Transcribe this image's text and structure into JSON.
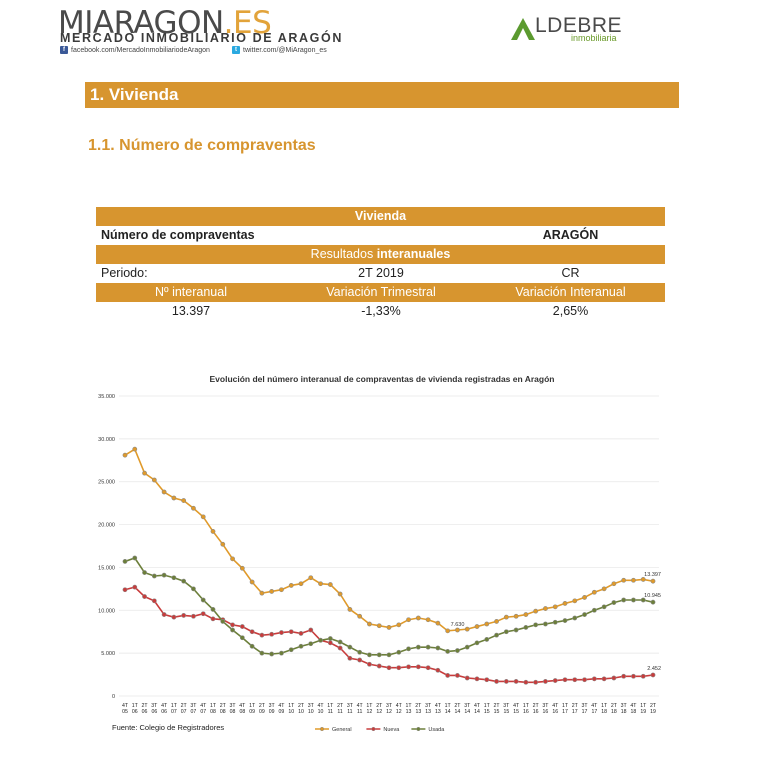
{
  "header": {
    "logo_main": "MIARAGON",
    "logo_tld": ".ES",
    "logo_subtitle": "MERCADO INMOBILIARIO DE ARAGÓN",
    "facebook": "facebook.com/MercadoInmobiliariodeAragon",
    "twitter": "twitter.com/@MiAragon_es",
    "partner_name": "LDEBRE",
    "partner_sub": "inmobiliaria"
  },
  "section_title": "1. Vivienda",
  "subsection_title": "1.1. Número de compraventas",
  "table": {
    "title": "Vivienda",
    "row2_left": "Número de compraventas",
    "row2_right": "ARAGÓN",
    "results_prefix": "Resultados ",
    "results_bold": "interanuales",
    "period_label": "Periodo:",
    "period_value": "2T 2019",
    "period_code": "CR",
    "headers": [
      "Nº interanual",
      "Variación Trimestral",
      "Variación Interanual"
    ],
    "values": [
      "13.397",
      "-1,33%",
      "2,65%"
    ]
  },
  "chart_data": {
    "type": "line",
    "title": "Evolución del número interanual de compraventas de vivienda registradas en Aragón",
    "ylim": [
      0,
      35000
    ],
    "yticks": [
      "0",
      "5.000",
      "10.000",
      "15.000",
      "20.000",
      "25.000",
      "30.000",
      "35.000"
    ],
    "categories": [
      "4T 05",
      "1T 06",
      "2T 06",
      "3T 06",
      "4T 06",
      "1T 07",
      "2T 07",
      "3T 07",
      "4T 07",
      "1T 08",
      "2T 08",
      "3T 08",
      "4T 08",
      "1T 09",
      "2T 09",
      "3T 09",
      "4T 09",
      "1T 10",
      "2T 10",
      "3T 10",
      "4T 10",
      "1T 11",
      "2T 11",
      "3T 11",
      "4T 11",
      "1T 12",
      "2T 12",
      "3T 12",
      "4T 12",
      "1T 13",
      "2T 13",
      "3T 13",
      "4T 13",
      "1T 14",
      "2T 14",
      "3T 14",
      "4T 14",
      "1T 15",
      "2T 15",
      "3T 15",
      "4T 15",
      "1T 16",
      "2T 16",
      "3T 16",
      "4T 16",
      "1T 17",
      "2T 17",
      "3T 17",
      "4T 17",
      "1T 18",
      "2T 18",
      "3T 18",
      "4T 18",
      "1T 19",
      "2T 19"
    ],
    "series": [
      {
        "name": "General",
        "color": "#e09a2a",
        "values": [
          28100,
          28800,
          26000,
          25200,
          23800,
          23100,
          22800,
          21900,
          20900,
          19200,
          17700,
          16000,
          14900,
          13300,
          12000,
          12200,
          12400,
          12900,
          13100,
          13800,
          13100,
          13000,
          11900,
          10100,
          9300,
          8400,
          8200,
          8000,
          8300,
          8900,
          9100,
          8900,
          8500,
          7600,
          7700,
          7800,
          8100,
          8400,
          8700,
          9200,
          9300,
          9500,
          9900,
          10200,
          10400,
          10800,
          11100,
          11500,
          12100,
          12500,
          13100,
          13500,
          13500,
          13600,
          13397
        ]
      },
      {
        "name": "Nueva",
        "color": "#c83c3c",
        "values": [
          12400,
          12700,
          11600,
          11100,
          9500,
          9200,
          9400,
          9300,
          9600,
          9000,
          8900,
          8300,
          8100,
          7500,
          7100,
          7200,
          7400,
          7500,
          7300,
          7700,
          6500,
          6200,
          5600,
          4400,
          4200,
          3700,
          3500,
          3300,
          3300,
          3400,
          3400,
          3300,
          3000,
          2400,
          2400,
          2100,
          2000,
          1900,
          1700,
          1700,
          1700,
          1600,
          1600,
          1700,
          1800,
          1900,
          1900,
          1900,
          2000,
          2000,
          2100,
          2300,
          2300,
          2300,
          2452
        ]
      },
      {
        "name": "Usada",
        "color": "#6c7f3a",
        "values": [
          15700,
          16100,
          14400,
          14000,
          14100,
          13800,
          13400,
          12500,
          11200,
          10100,
          8700,
          7700,
          6800,
          5800,
          5000,
          4900,
          5000,
          5400,
          5800,
          6100,
          6500,
          6700,
          6300,
          5700,
          5100,
          4800,
          4800,
          4800,
          5100,
          5500,
          5700,
          5700,
          5600,
          5200,
          5300,
          5700,
          6200,
          6600,
          7100,
          7500,
          7700,
          8000,
          8300,
          8400,
          8600,
          8800,
          9100,
          9500,
          10000,
          10400,
          10900,
          11200,
          11200,
          11200,
          10945
        ]
      }
    ],
    "annotations": [
      {
        "text": "13.397",
        "series": 0,
        "index": 54
      },
      {
        "text": "10.945",
        "series": 2,
        "index": 54
      },
      {
        "text": "2.452",
        "series": 1,
        "index": 54
      },
      {
        "text": "7.630",
        "series": 0,
        "index": 33
      }
    ],
    "legend_position": "bottom"
  },
  "source_text": "Fuente: Colegio de Registradores"
}
